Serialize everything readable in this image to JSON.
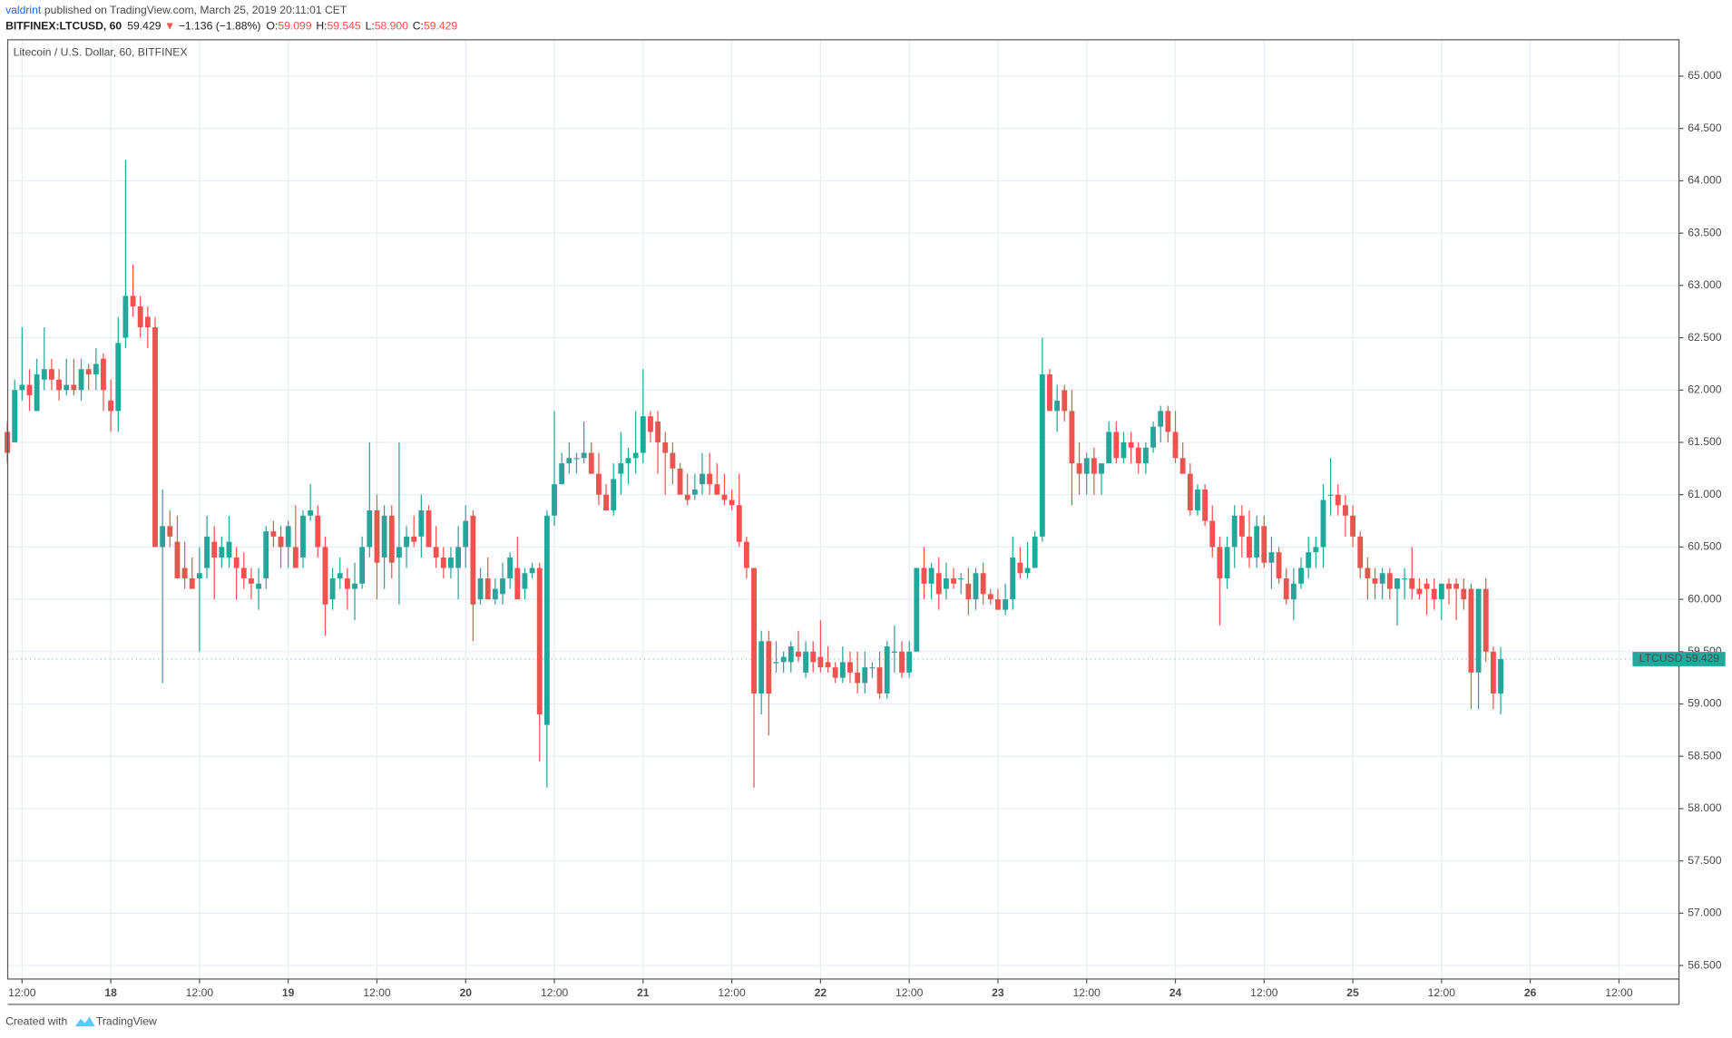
{
  "header": {
    "author": "valdrint",
    "published": "published on TradingView.com, March 25, 2019 20:11:01 CET",
    "symbol": "BITFINEX:LTCUSD, 60",
    "last": "59.429",
    "arrow": "▼",
    "change": "−1.136 (−1.88%)",
    "o_label": "O:",
    "o": "59.099",
    "h_label": "H:",
    "h": "59.545",
    "l_label": "L:",
    "l": "58.900",
    "c_label": "C:",
    "c": "59.429"
  },
  "footer": {
    "created": "Created with",
    "brand": "TradingView"
  },
  "chart_data": {
    "type": "candlestick",
    "title": "Litecoin / U.S. Dollar, 60, BITFINEX",
    "up_color": "#26a69a",
    "down_color": "#ef5350",
    "grid": true,
    "price_tag": {
      "name": "LTCUSD",
      "value": 59.429,
      "label": "59.429"
    },
    "ylim": [
      56.371,
      65.348
    ],
    "yticks": [
      {
        "value": 56.5,
        "label": "56.500"
      },
      {
        "value": 57,
        "label": "57.000"
      },
      {
        "value": 57.5,
        "label": "57.500"
      },
      {
        "value": 58,
        "label": "58.000"
      },
      {
        "value": 58.5,
        "label": "58.500"
      },
      {
        "value": 59,
        "label": "59.000"
      },
      {
        "value": 59.5,
        "label": "59.500"
      },
      {
        "value": 60,
        "label": "60.000"
      },
      {
        "value": 60.5,
        "label": "60.500"
      },
      {
        "value": 61,
        "label": "61.000"
      },
      {
        "value": 61.5,
        "label": "61.500"
      },
      {
        "value": 62,
        "label": "62.000"
      },
      {
        "value": 62.5,
        "label": "62.500"
      },
      {
        "value": 63,
        "label": "63.000"
      },
      {
        "value": 63.5,
        "label": "63.500"
      },
      {
        "value": 64,
        "label": "64.000"
      },
      {
        "value": 64.5,
        "label": "64.500"
      },
      {
        "value": 65,
        "label": "65.000"
      }
    ],
    "categories": [
      null,
      null,
      "12:00",
      null,
      null,
      null,
      null,
      null,
      null,
      null,
      null,
      null,
      null,
      null,
      "18",
      null,
      null,
      null,
      null,
      null,
      null,
      null,
      null,
      null,
      null,
      null,
      "12:00",
      null,
      null,
      null,
      null,
      null,
      null,
      null,
      null,
      null,
      null,
      null,
      "19",
      null,
      null,
      null,
      null,
      null,
      null,
      null,
      null,
      null,
      null,
      null,
      "12:00",
      null,
      null,
      null,
      null,
      null,
      null,
      null,
      null,
      null,
      null,
      null,
      "20",
      null,
      null,
      null,
      null,
      null,
      null,
      null,
      null,
      null,
      null,
      null,
      "12:00",
      null,
      null,
      null,
      null,
      null,
      null,
      null,
      null,
      null,
      null,
      null,
      "21",
      null,
      null,
      null,
      null,
      null,
      null,
      null,
      null,
      null,
      null,
      null,
      "12:00",
      null,
      null,
      null,
      null,
      null,
      null,
      null,
      null,
      null,
      null,
      null,
      "22",
      null,
      null,
      null,
      null,
      null,
      null,
      null,
      null,
      null,
      null,
      null,
      "12:00",
      null,
      null,
      null,
      null,
      null,
      null,
      null,
      null,
      null,
      null,
      null,
      "23",
      null,
      null,
      null,
      null,
      null,
      null,
      null,
      null,
      null,
      null,
      null,
      "12:00",
      null,
      null,
      null,
      null,
      null,
      null,
      null,
      null,
      null,
      null,
      null,
      "24",
      null,
      null,
      null,
      null,
      null,
      null,
      null,
      null,
      null,
      null,
      null,
      "12:00",
      null,
      null,
      null,
      null,
      null,
      null,
      null,
      null,
      null,
      null,
      null,
      "25",
      null,
      null,
      null,
      null,
      null,
      null,
      null,
      null,
      null,
      null,
      null,
      "12:00",
      null,
      null,
      null,
      null,
      null,
      null,
      null,
      null,
      null,
      null,
      null,
      "26",
      null,
      null,
      null,
      null,
      null,
      null,
      null,
      null,
      null,
      null,
      null,
      "12:00",
      null,
      null,
      null,
      null,
      null,
      null,
      null,
      null
    ],
    "candles": [
      [
        61.6,
        61.7,
        61.3,
        61.4
      ],
      [
        61.5,
        62.1,
        61.5,
        62.0
      ],
      [
        62.0,
        62.6,
        61.9,
        62.05
      ],
      [
        62.05,
        62.2,
        61.8,
        61.95
      ],
      [
        61.8,
        62.3,
        61.8,
        62.15
      ],
      [
        62.1,
        62.6,
        62.0,
        62.2
      ],
      [
        62.2,
        62.3,
        62.0,
        62.1
      ],
      [
        62.1,
        62.2,
        61.9,
        62.0
      ],
      [
        62.0,
        62.3,
        61.95,
        62.05
      ],
      [
        62.05,
        62.3,
        61.95,
        62.0
      ],
      [
        62.0,
        62.3,
        61.9,
        62.2
      ],
      [
        62.2,
        62.25,
        62.0,
        62.15
      ],
      [
        62.15,
        62.4,
        62.0,
        62.25
      ],
      [
        62.3,
        62.35,
        61.8,
        62.0
      ],
      [
        61.9,
        62.1,
        61.6,
        61.8
      ],
      [
        61.8,
        62.7,
        61.6,
        62.45
      ],
      [
        62.5,
        64.2,
        62.4,
        62.9
      ],
      [
        62.9,
        63.2,
        62.7,
        62.8
      ],
      [
        62.8,
        62.9,
        62.5,
        62.6
      ],
      [
        62.7,
        62.8,
        62.4,
        62.6
      ],
      [
        62.6,
        62.7,
        60.5,
        60.5
      ],
      [
        60.5,
        61.05,
        59.2,
        60.7
      ],
      [
        60.7,
        60.85,
        60.5,
        60.6
      ],
      [
        60.55,
        60.8,
        60.2,
        60.2
      ],
      [
        60.3,
        60.55,
        60.1,
        60.2
      ],
      [
        60.2,
        60.4,
        60.1,
        60.1
      ],
      [
        60.2,
        60.5,
        59.5,
        60.25
      ],
      [
        60.3,
        60.8,
        60.2,
        60.6
      ],
      [
        60.55,
        60.7,
        60.0,
        60.4
      ],
      [
        60.4,
        60.6,
        60.3,
        60.5
      ],
      [
        60.4,
        60.8,
        60.3,
        60.55
      ],
      [
        60.4,
        60.5,
        60.0,
        60.3
      ],
      [
        60.3,
        60.45,
        60.1,
        60.2
      ],
      [
        60.2,
        60.3,
        60.0,
        60.15
      ],
      [
        60.1,
        60.3,
        59.9,
        60.15
      ],
      [
        60.2,
        60.7,
        60.1,
        60.65
      ],
      [
        60.65,
        60.75,
        60.5,
        60.6
      ],
      [
        60.6,
        60.7,
        60.3,
        60.5
      ],
      [
        60.5,
        60.75,
        60.3,
        60.7
      ],
      [
        60.5,
        60.9,
        60.3,
        60.3
      ],
      [
        60.4,
        60.85,
        60.3,
        60.8
      ],
      [
        60.8,
        61.1,
        60.75,
        60.85
      ],
      [
        60.8,
        60.9,
        60.4,
        60.5
      ],
      [
        60.5,
        60.6,
        59.65,
        59.95
      ],
      [
        60.0,
        60.3,
        59.9,
        60.2
      ],
      [
        60.2,
        60.4,
        60.1,
        60.25
      ],
      [
        60.2,
        60.3,
        59.9,
        60.1
      ],
      [
        60.1,
        60.35,
        59.8,
        60.15
      ],
      [
        60.15,
        60.6,
        60.1,
        60.5
      ],
      [
        60.5,
        61.5,
        60.4,
        60.85
      ],
      [
        60.85,
        61.0,
        60.0,
        60.35
      ],
      [
        60.4,
        60.9,
        60.1,
        60.8
      ],
      [
        60.8,
        60.9,
        60.2,
        60.35
      ],
      [
        60.4,
        61.5,
        59.95,
        60.5
      ],
      [
        60.5,
        60.7,
        60.3,
        60.6
      ],
      [
        60.6,
        60.8,
        60.5,
        60.55
      ],
      [
        60.6,
        61.0,
        60.4,
        60.85
      ],
      [
        60.85,
        60.9,
        60.5,
        60.5
      ],
      [
        60.5,
        60.7,
        60.3,
        60.4
      ],
      [
        60.4,
        60.5,
        60.2,
        60.3
      ],
      [
        60.3,
        60.5,
        60.2,
        60.4
      ],
      [
        60.3,
        60.7,
        60.0,
        60.5
      ],
      [
        60.5,
        60.9,
        60.3,
        60.75
      ],
      [
        60.8,
        60.85,
        59.6,
        59.95
      ],
      [
        60.0,
        60.3,
        59.95,
        60.2
      ],
      [
        60.2,
        60.4,
        60.0,
        60.0
      ],
      [
        60.0,
        60.2,
        59.95,
        60.1
      ],
      [
        60.05,
        60.35,
        59.95,
        60.2
      ],
      [
        60.2,
        60.45,
        60.1,
        60.4
      ],
      [
        60.3,
        60.6,
        60.0,
        60.0
      ],
      [
        60.1,
        60.3,
        60.0,
        60.25
      ],
      [
        60.25,
        60.35,
        60.2,
        60.3
      ],
      [
        60.3,
        60.35,
        58.45,
        58.9
      ],
      [
        58.8,
        60.85,
        58.2,
        60.8
      ],
      [
        60.8,
        61.8,
        60.7,
        61.1
      ],
      [
        61.1,
        61.4,
        61.1,
        61.3
      ],
      [
        61.3,
        61.5,
        61.2,
        61.35
      ],
      [
        61.35,
        61.4,
        61.2,
        61.35
      ],
      [
        61.35,
        61.7,
        61.3,
        61.4
      ],
      [
        61.4,
        61.5,
        61.2,
        61.2
      ],
      [
        61.2,
        61.4,
        60.9,
        61.0
      ],
      [
        61.0,
        61.1,
        60.85,
        60.85
      ],
      [
        60.85,
        61.3,
        60.8,
        61.15
      ],
      [
        61.2,
        61.6,
        61.0,
        61.3
      ],
      [
        61.3,
        61.45,
        61.1,
        61.35
      ],
      [
        61.35,
        61.8,
        61.2,
        61.4
      ],
      [
        61.4,
        62.2,
        61.3,
        61.75
      ],
      [
        61.75,
        61.8,
        61.5,
        61.6
      ],
      [
        61.7,
        61.8,
        61.2,
        61.5
      ],
      [
        61.5,
        61.6,
        61.0,
        61.4
      ],
      [
        61.4,
        61.5,
        61.1,
        61.25
      ],
      [
        61.25,
        61.3,
        61.0,
        61.0
      ],
      [
        61.0,
        61.2,
        60.9,
        60.95
      ],
      [
        61.0,
        61.2,
        60.95,
        61.05
      ],
      [
        61.1,
        61.4,
        61.0,
        61.2
      ],
      [
        61.2,
        61.4,
        61.0,
        61.1
      ],
      [
        61.1,
        61.3,
        61.0,
        61.0
      ],
      [
        61.0,
        61.2,
        60.9,
        60.95
      ],
      [
        60.95,
        61.05,
        60.85,
        60.9
      ],
      [
        60.9,
        61.2,
        60.5,
        60.55
      ],
      [
        60.55,
        60.6,
        60.2,
        60.3
      ],
      [
        60.3,
        60.3,
        58.2,
        59.1
      ],
      [
        59.1,
        59.7,
        58.9,
        59.6
      ],
      [
        59.6,
        59.7,
        58.7,
        59.1
      ],
      [
        59.4,
        59.6,
        59.3,
        59.4
      ],
      [
        59.4,
        59.5,
        59.3,
        59.45
      ],
      [
        59.4,
        59.6,
        59.3,
        59.55
      ],
      [
        59.5,
        59.7,
        59.4,
        59.45
      ],
      [
        59.3,
        59.6,
        59.25,
        59.5
      ],
      [
        59.5,
        59.6,
        59.3,
        59.4
      ],
      [
        59.45,
        59.8,
        59.3,
        59.35
      ],
      [
        59.4,
        59.55,
        59.3,
        59.35
      ],
      [
        59.35,
        59.4,
        59.2,
        59.25
      ],
      [
        59.25,
        59.55,
        59.2,
        59.4
      ],
      [
        59.4,
        59.5,
        59.2,
        59.3
      ],
      [
        59.3,
        59.5,
        59.1,
        59.2
      ],
      [
        59.2,
        59.5,
        59.1,
        59.35
      ],
      [
        59.35,
        59.4,
        59.25,
        59.35
      ],
      [
        59.35,
        59.5,
        59.05,
        59.1
      ],
      [
        59.1,
        59.6,
        59.05,
        59.55
      ],
      [
        59.5,
        59.75,
        59.3,
        59.5
      ],
      [
        59.5,
        59.6,
        59.25,
        59.3
      ],
      [
        59.3,
        59.6,
        59.25,
        59.5
      ],
      [
        59.5,
        60.3,
        59.5,
        60.3
      ],
      [
        60.3,
        60.5,
        60.0,
        60.15
      ],
      [
        60.15,
        60.35,
        60.0,
        60.3
      ],
      [
        60.25,
        60.4,
        59.9,
        60.05
      ],
      [
        60.1,
        60.35,
        60.0,
        60.2
      ],
      [
        60.2,
        60.3,
        60.1,
        60.15
      ],
      [
        60.2,
        60.25,
        60.05,
        60.2
      ],
      [
        60.15,
        60.3,
        59.85,
        60.0
      ],
      [
        60.0,
        60.3,
        59.9,
        60.25
      ],
      [
        60.25,
        60.35,
        59.95,
        60.05
      ],
      [
        60.05,
        60.1,
        59.95,
        60.0
      ],
      [
        60.0,
        60.1,
        59.9,
        59.9
      ],
      [
        59.9,
        60.15,
        59.85,
        60.0
      ],
      [
        60.0,
        60.6,
        59.9,
        60.4
      ],
      [
        60.35,
        60.5,
        60.2,
        60.25
      ],
      [
        60.25,
        60.55,
        60.2,
        60.3
      ],
      [
        60.3,
        60.65,
        60.3,
        60.6
      ],
      [
        60.6,
        62.5,
        60.55,
        62.15
      ],
      [
        62.15,
        62.2,
        61.8,
        61.8
      ],
      [
        61.8,
        62.05,
        61.6,
        61.9
      ],
      [
        62.0,
        62.05,
        61.7,
        61.8
      ],
      [
        61.8,
        62.0,
        60.9,
        61.3
      ],
      [
        61.3,
        61.5,
        61.0,
        61.2
      ],
      [
        61.2,
        61.4,
        61.0,
        61.35
      ],
      [
        61.35,
        61.45,
        61.0,
        61.2
      ],
      [
        61.2,
        61.3,
        61.0,
        61.3
      ],
      [
        61.3,
        61.7,
        61.3,
        61.6
      ],
      [
        61.6,
        61.7,
        61.3,
        61.35
      ],
      [
        61.35,
        61.6,
        61.3,
        61.5
      ],
      [
        61.5,
        61.6,
        61.3,
        61.45
      ],
      [
        61.45,
        61.5,
        61.2,
        61.3
      ],
      [
        61.3,
        61.5,
        61.2,
        61.45
      ],
      [
        61.45,
        61.7,
        61.4,
        61.65
      ],
      [
        61.65,
        61.85,
        61.5,
        61.8
      ],
      [
        61.8,
        61.85,
        61.5,
        61.6
      ],
      [
        61.6,
        61.8,
        61.3,
        61.35
      ],
      [
        61.35,
        61.5,
        61.2,
        61.2
      ],
      [
        61.2,
        61.3,
        60.8,
        60.85
      ],
      [
        60.85,
        61.1,
        60.8,
        61.05
      ],
      [
        61.05,
        61.1,
        60.7,
        60.75
      ],
      [
        60.75,
        60.9,
        60.4,
        60.5
      ],
      [
        60.5,
        60.6,
        59.75,
        60.2
      ],
      [
        60.2,
        60.6,
        60.1,
        60.5
      ],
      [
        60.5,
        60.9,
        60.3,
        60.8
      ],
      [
        60.8,
        60.9,
        60.4,
        60.6
      ],
      [
        60.6,
        60.85,
        60.3,
        60.4
      ],
      [
        60.4,
        60.8,
        60.3,
        60.7
      ],
      [
        60.7,
        60.8,
        60.3,
        60.35
      ],
      [
        60.35,
        60.6,
        60.1,
        60.45
      ],
      [
        60.45,
        60.5,
        60.15,
        60.2
      ],
      [
        60.2,
        60.3,
        59.95,
        60.0
      ],
      [
        60.0,
        60.3,
        59.8,
        60.15
      ],
      [
        60.15,
        60.4,
        60.1,
        60.3
      ],
      [
        60.3,
        60.6,
        60.2,
        60.45
      ],
      [
        60.45,
        60.6,
        60.3,
        60.5
      ],
      [
        60.5,
        61.1,
        60.3,
        60.95
      ],
      [
        61.0,
        61.35,
        60.8,
        61.0
      ],
      [
        61.0,
        61.1,
        60.8,
        60.9
      ],
      [
        60.9,
        61.0,
        60.6,
        60.8
      ],
      [
        60.8,
        60.9,
        60.5,
        60.6
      ],
      [
        60.6,
        60.65,
        60.2,
        60.3
      ],
      [
        60.3,
        60.4,
        60.0,
        60.2
      ],
      [
        60.2,
        60.3,
        60.0,
        60.15
      ],
      [
        60.15,
        60.3,
        60.0,
        60.25
      ],
      [
        60.25,
        60.3,
        60.0,
        60.1
      ],
      [
        60.1,
        60.2,
        59.75,
        60.2
      ],
      [
        60.2,
        60.3,
        60.0,
        60.2
      ],
      [
        60.2,
        60.5,
        60.0,
        60.1
      ],
      [
        60.1,
        60.2,
        60.0,
        60.05
      ],
      [
        60.15,
        60.2,
        59.85,
        60.1
      ],
      [
        60.1,
        60.2,
        59.9,
        60.0
      ],
      [
        60.0,
        60.15,
        59.8,
        60.15
      ],
      [
        60.15,
        60.2,
        59.95,
        60.1
      ],
      [
        60.15,
        60.2,
        59.8,
        60.1
      ],
      [
        60.1,
        60.2,
        59.9,
        60.0
      ],
      [
        60.1,
        60.15,
        58.95,
        59.3
      ],
      [
        59.3,
        60.1,
        58.95,
        60.1
      ],
      [
        60.1,
        60.2,
        59.4,
        59.5
      ],
      [
        59.5,
        59.55,
        58.95,
        59.1
      ],
      [
        59.099,
        59.545,
        58.9,
        59.429
      ],
      null,
      null,
      null,
      null,
      null,
      null,
      null,
      null,
      null,
      null,
      null,
      null,
      null,
      null,
      null,
      null,
      null,
      null,
      null,
      null,
      null,
      null,
      null,
      null
    ]
  }
}
